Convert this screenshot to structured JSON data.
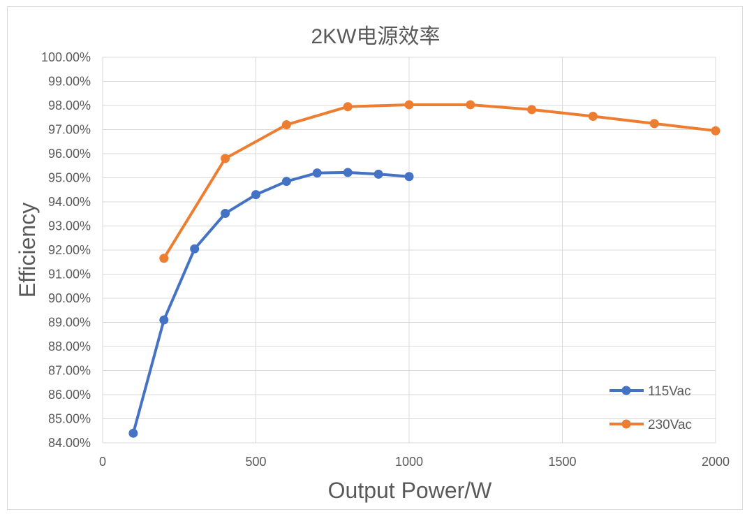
{
  "chart_data": {
    "type": "line",
    "title": "2KW电源效率",
    "xlabel": "Output Power/W",
    "ylabel": "Efficiency",
    "xlim": [
      0,
      2000
    ],
    "ylim": [
      0.84,
      1.0
    ],
    "x_ticks": [
      0,
      500,
      1000,
      1500,
      2000
    ],
    "x_tick_labels": [
      "0",
      "500",
      "1000",
      "1500",
      "2000"
    ],
    "y_ticks": [
      0.84,
      0.85,
      0.86,
      0.87,
      0.88,
      0.89,
      0.9,
      0.91,
      0.92,
      0.93,
      0.94,
      0.95,
      0.96,
      0.97,
      0.98,
      0.99,
      1.0
    ],
    "y_tick_labels": [
      "84.00%",
      "85.00%",
      "86.00%",
      "87.00%",
      "88.00%",
      "89.00%",
      "90.00%",
      "91.00%",
      "92.00%",
      "93.00%",
      "94.00%",
      "95.00%",
      "96.00%",
      "97.00%",
      "98.00%",
      "99.00%",
      "100.00%"
    ],
    "grid": true,
    "legend_position": "bottom-right",
    "series": [
      {
        "name": "115Vac",
        "color": "#4472C4",
        "x": [
          100,
          200,
          300,
          400,
          500,
          600,
          700,
          800,
          900,
          1000
        ],
        "y": [
          0.844,
          0.891,
          0.9205,
          0.9352,
          0.943,
          0.9485,
          0.952,
          0.9522,
          0.9515,
          0.9505
        ]
      },
      {
        "name": "230Vac",
        "color": "#ED7D31",
        "x": [
          200,
          400,
          600,
          800,
          1000,
          1200,
          1400,
          1600,
          1800,
          2000
        ],
        "y": [
          0.9166,
          0.958,
          0.972,
          0.9795,
          0.9803,
          0.9803,
          0.9783,
          0.9755,
          0.9725,
          0.9695
        ]
      }
    ]
  }
}
